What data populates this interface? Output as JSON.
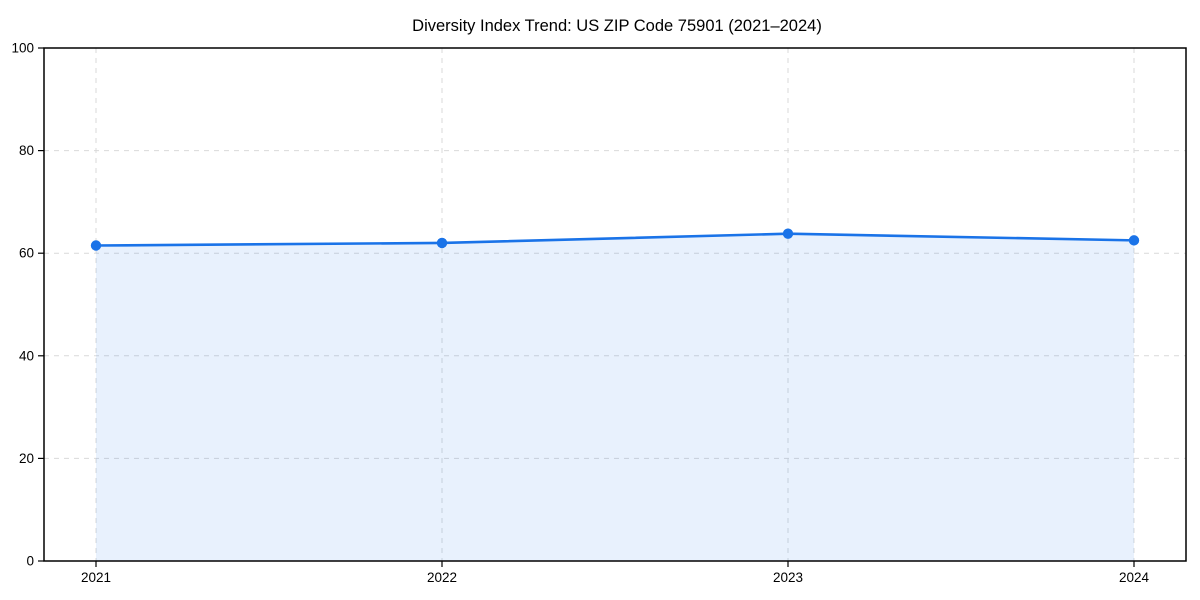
{
  "chart_data": {
    "type": "line",
    "title": "Diversity Index Trend: US ZIP Code 75901 (2021–2024)",
    "categories": [
      "2021",
      "2022",
      "2023",
      "2024"
    ],
    "series": [
      {
        "name": "Diversity Index",
        "values": [
          61.5,
          62.0,
          63.8,
          62.5
        ]
      }
    ],
    "xlabel": "",
    "ylabel": "",
    "ylim": [
      0,
      100
    ],
    "yticks": [
      0,
      20,
      40,
      60,
      80,
      100
    ],
    "grid": true,
    "legend_position": "none",
    "marker": "circle",
    "area_fill": true,
    "colors": {
      "line": "#1a73e8",
      "marker": "#1a73e8",
      "fill": "rgba(26,115,232,0.10)",
      "grid": "#d9d9d9",
      "spine": "#000000",
      "text": "#000000",
      "background": "#ffffff"
    }
  }
}
